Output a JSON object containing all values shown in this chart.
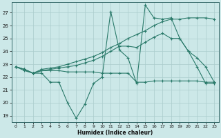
{
  "xlabel": "Humidex (Indice chaleur)",
  "bg_color": "#cce8e8",
  "grid_color": "#aacccc",
  "line_color": "#2a7a6a",
  "xlim": [
    -0.5,
    23.5
  ],
  "ylim": [
    18.5,
    27.8
  ],
  "yticks": [
    19,
    20,
    21,
    22,
    23,
    24,
    25,
    26,
    27
  ],
  "xticks": [
    0,
    1,
    2,
    3,
    4,
    5,
    6,
    7,
    8,
    9,
    10,
    11,
    12,
    13,
    14,
    15,
    16,
    17,
    18,
    19,
    20,
    21,
    22,
    23
  ],
  "line1_x": [
    0,
    1,
    2,
    3,
    4,
    5,
    6,
    7,
    8,
    9,
    10,
    11,
    12,
    13,
    14,
    15,
    16,
    17,
    18,
    19,
    20,
    21,
    22,
    23
  ],
  "line1_y": [
    22.8,
    22.6,
    22.3,
    22.3,
    21.6,
    21.6,
    20.0,
    18.8,
    19.9,
    21.5,
    22.0,
    27.1,
    24.1,
    23.5,
    21.5,
    27.6,
    26.6,
    26.5,
    26.6,
    25.0,
    24.0,
    22.8,
    21.5,
    21.5
  ],
  "line2_x": [
    0,
    1,
    2,
    3,
    4,
    5,
    6,
    7,
    8,
    9,
    10,
    11,
    12,
    13,
    14,
    15,
    16,
    17,
    18,
    19,
    20,
    21,
    22,
    23
  ],
  "line2_y": [
    22.8,
    22.6,
    22.3,
    22.6,
    22.7,
    22.8,
    23.0,
    23.2,
    23.4,
    23.6,
    23.9,
    24.3,
    24.6,
    25.0,
    25.3,
    25.6,
    26.0,
    26.3,
    26.5,
    26.5,
    26.6,
    26.6,
    26.6,
    26.5
  ],
  "line3_x": [
    0,
    1,
    2,
    3,
    4,
    5,
    6,
    7,
    8,
    9,
    10,
    11,
    12,
    13,
    14,
    15,
    16,
    17,
    18,
    19,
    20,
    21,
    22,
    23
  ],
  "line3_y": [
    22.8,
    22.5,
    22.3,
    22.5,
    22.5,
    22.5,
    22.4,
    22.4,
    22.4,
    22.4,
    22.3,
    22.3,
    22.3,
    22.3,
    21.6,
    21.6,
    21.7,
    21.7,
    21.7,
    21.7,
    21.7,
    21.7,
    21.6,
    21.6
  ],
  "line4_x": [
    0,
    1,
    2,
    3,
    4,
    5,
    6,
    7,
    8,
    9,
    10,
    11,
    12,
    13,
    14,
    15,
    16,
    17,
    18,
    19,
    20,
    21,
    22,
    23
  ],
  "line4_y": [
    22.8,
    22.6,
    22.3,
    22.5,
    22.6,
    22.7,
    22.8,
    22.9,
    23.1,
    23.3,
    23.6,
    24.0,
    24.4,
    24.4,
    24.3,
    24.7,
    25.1,
    25.4,
    25.0,
    25.0,
    24.0,
    23.5,
    22.8,
    21.6
  ]
}
